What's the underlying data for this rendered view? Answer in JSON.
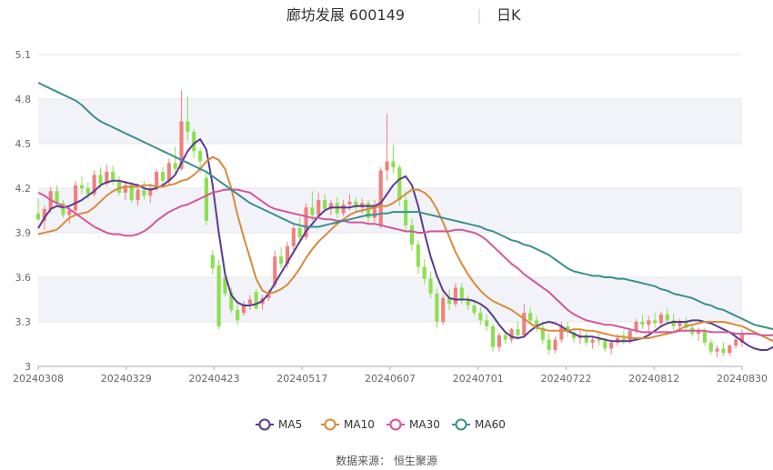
{
  "title": {
    "name": "廊坊发展 600149",
    "period": "日K"
  },
  "source_text": "数据来源： 恒生聚源",
  "colors": {
    "up": "#f07f7f",
    "down": "#8ae04e",
    "band": "#f2f3f8"
  },
  "chart_data": {
    "type": "candlestick",
    "title": "廊坊发展 600149",
    "period": "日K",
    "ylim": [
      3.0,
      5.1
    ],
    "yticks": [
      3,
      3.3,
      3.6,
      3.9,
      4.2,
      4.5,
      4.8,
      5.1
    ],
    "xtick_labels": [
      "20240308",
      "20240329",
      "20240423",
      "20240517",
      "20240607",
      "20240701",
      "20240722",
      "20240812",
      "20240830"
    ],
    "x_axis_order": "dates in ascending order; tick labels placed at every 15th session",
    "legend_placement": "bottom",
    "grid": "horizontal bands",
    "candles_ohlc": [
      [
        4.03,
        4.13,
        3.98,
        3.99
      ],
      [
        3.98,
        4.08,
        3.92,
        4.06
      ],
      [
        4.06,
        4.21,
        4.03,
        4.18
      ],
      [
        4.18,
        4.22,
        4.08,
        4.1
      ],
      [
        4.1,
        4.12,
        4.0,
        4.02
      ],
      [
        4.02,
        4.08,
        3.96,
        4.05
      ],
      [
        4.05,
        4.25,
        4.03,
        4.22
      ],
      [
        4.22,
        4.28,
        4.16,
        4.2
      ],
      [
        4.2,
        4.24,
        4.13,
        4.16
      ],
      [
        4.16,
        4.32,
        4.14,
        4.29
      ],
      [
        4.29,
        4.34,
        4.2,
        4.23
      ],
      [
        4.23,
        4.36,
        4.21,
        4.31
      ],
      [
        4.31,
        4.35,
        4.22,
        4.25
      ],
      [
        4.25,
        4.28,
        4.15,
        4.17
      ],
      [
        4.17,
        4.24,
        4.12,
        4.22
      ],
      [
        4.22,
        4.24,
        4.1,
        4.12
      ],
      [
        4.12,
        4.23,
        4.08,
        4.19
      ],
      [
        4.19,
        4.25,
        4.12,
        4.15
      ],
      [
        4.15,
        4.23,
        4.1,
        4.2
      ],
      [
        4.2,
        4.33,
        4.18,
        4.31
      ],
      [
        4.31,
        4.34,
        4.22,
        4.25
      ],
      [
        4.25,
        4.4,
        4.22,
        4.37
      ],
      [
        4.37,
        4.48,
        4.3,
        4.33
      ],
      [
        4.33,
        4.86,
        4.32,
        4.65
      ],
      [
        4.65,
        4.82,
        4.52,
        4.58
      ],
      [
        4.58,
        4.6,
        4.4,
        4.45
      ],
      [
        4.45,
        4.47,
        4.3,
        4.38
      ],
      [
        4.27,
        4.3,
        3.95,
        3.98
      ],
      [
        3.75,
        3.78,
        3.62,
        3.66
      ],
      [
        3.68,
        3.72,
        3.25,
        3.27
      ],
      [
        3.6,
        3.65,
        3.47,
        3.49
      ],
      [
        3.5,
        3.53,
        3.36,
        3.38
      ],
      [
        3.38,
        3.42,
        3.28,
        3.31
      ],
      [
        3.36,
        3.44,
        3.34,
        3.42
      ],
      [
        3.42,
        3.48,
        3.38,
        3.45
      ],
      [
        3.5,
        3.52,
        3.38,
        3.39
      ],
      [
        3.42,
        3.48,
        3.38,
        3.46
      ],
      [
        3.46,
        3.52,
        3.44,
        3.5
      ],
      [
        3.55,
        3.78,
        3.53,
        3.74
      ],
      [
        3.74,
        3.8,
        3.66,
        3.69
      ],
      [
        3.69,
        3.84,
        3.66,
        3.81
      ],
      [
        3.81,
        3.95,
        3.76,
        3.93
      ],
      [
        3.93,
        4.0,
        3.84,
        3.87
      ],
      [
        3.87,
        4.1,
        3.85,
        4.07
      ],
      [
        4.07,
        4.18,
        3.98,
        4.02
      ],
      [
        4.02,
        4.17,
        4.0,
        4.12
      ],
      [
        4.12,
        4.16,
        4.04,
        4.06
      ],
      [
        4.06,
        4.12,
        4.02,
        4.1
      ],
      [
        4.1,
        4.14,
        4.0,
        4.03
      ],
      [
        4.03,
        4.12,
        4.01,
        4.09
      ],
      [
        4.09,
        4.16,
        4.05,
        4.11
      ],
      [
        4.11,
        4.14,
        4.04,
        4.07
      ],
      [
        4.07,
        4.13,
        4.03,
        4.1
      ],
      [
        4.1,
        4.12,
        3.97,
        4.0
      ],
      [
        4.0,
        4.12,
        3.97,
        4.08
      ],
      [
        3.95,
        4.34,
        3.93,
        4.32
      ],
      [
        4.32,
        4.7,
        4.25,
        4.38
      ],
      [
        4.38,
        4.49,
        4.3,
        4.34
      ],
      [
        4.34,
        4.36,
        4.08,
        4.12
      ],
      [
        4.12,
        4.18,
        3.9,
        3.95
      ],
      [
        3.95,
        4.0,
        3.78,
        3.82
      ],
      [
        3.82,
        3.85,
        3.62,
        3.67
      ],
      [
        3.67,
        3.72,
        3.55,
        3.59
      ],
      [
        3.59,
        3.64,
        3.46,
        3.49
      ],
      [
        3.49,
        3.52,
        3.26,
        3.3
      ],
      [
        3.3,
        3.48,
        3.28,
        3.46
      ],
      [
        3.46,
        3.52,
        3.38,
        3.42
      ],
      [
        3.42,
        3.56,
        3.4,
        3.53
      ],
      [
        3.53,
        3.56,
        3.42,
        3.45
      ],
      [
        3.45,
        3.48,
        3.38,
        3.41
      ],
      [
        3.41,
        3.45,
        3.34,
        3.36
      ],
      [
        3.36,
        3.4,
        3.28,
        3.31
      ],
      [
        3.31,
        3.35,
        3.24,
        3.27
      ],
      [
        3.27,
        3.29,
        3.1,
        3.13
      ],
      [
        3.13,
        3.23,
        3.1,
        3.21
      ],
      [
        3.21,
        3.24,
        3.15,
        3.18
      ],
      [
        3.18,
        3.26,
        3.16,
        3.25
      ],
      [
        3.25,
        3.3,
        3.18,
        3.21
      ],
      [
        3.21,
        3.42,
        3.19,
        3.36
      ],
      [
        3.36,
        3.4,
        3.28,
        3.31
      ],
      [
        3.31,
        3.34,
        3.23,
        3.26
      ],
      [
        3.26,
        3.3,
        3.15,
        3.18
      ],
      [
        3.18,
        3.22,
        3.08,
        3.11
      ],
      [
        3.11,
        3.2,
        3.09,
        3.18
      ],
      [
        3.18,
        3.3,
        3.16,
        3.27
      ],
      [
        3.27,
        3.3,
        3.2,
        3.23
      ],
      [
        3.23,
        3.26,
        3.16,
        3.19
      ],
      [
        3.19,
        3.24,
        3.15,
        3.21
      ],
      [
        3.21,
        3.23,
        3.14,
        3.16
      ],
      [
        3.16,
        3.2,
        3.12,
        3.18
      ],
      [
        3.18,
        3.22,
        3.14,
        3.17
      ],
      [
        3.17,
        3.19,
        3.1,
        3.12
      ],
      [
        3.12,
        3.18,
        3.08,
        3.16
      ],
      [
        3.16,
        3.22,
        3.14,
        3.19
      ],
      [
        3.19,
        3.24,
        3.15,
        3.17
      ],
      [
        3.17,
        3.26,
        3.15,
        3.24
      ],
      [
        3.24,
        3.32,
        3.22,
        3.3
      ],
      [
        3.3,
        3.35,
        3.25,
        3.28
      ],
      [
        3.28,
        3.34,
        3.22,
        3.31
      ],
      [
        3.31,
        3.36,
        3.26,
        3.29
      ],
      [
        3.29,
        3.37,
        3.27,
        3.35
      ],
      [
        3.35,
        3.39,
        3.29,
        3.31
      ],
      [
        3.31,
        3.35,
        3.24,
        3.27
      ],
      [
        3.27,
        3.32,
        3.23,
        3.3
      ],
      [
        3.3,
        3.33,
        3.24,
        3.26
      ],
      [
        3.26,
        3.29,
        3.2,
        3.22
      ],
      [
        3.22,
        3.26,
        3.17,
        3.24
      ],
      [
        3.24,
        3.26,
        3.14,
        3.16
      ],
      [
        3.16,
        3.18,
        3.08,
        3.1
      ],
      [
        3.1,
        3.14,
        3.06,
        3.12
      ],
      [
        3.12,
        3.16,
        3.07,
        3.09
      ],
      [
        3.09,
        3.15,
        3.07,
        3.14
      ],
      [
        3.14,
        3.2,
        3.12,
        3.18
      ],
      [
        3.16,
        3.25,
        3.13,
        3.22
      ]
    ],
    "series": [
      {
        "name": "MA5",
        "color": "#5a3b8f",
        "values": [
          3.93,
          4.0,
          4.06,
          4.08,
          4.07,
          4.08,
          4.1,
          4.12,
          4.15,
          4.18,
          4.22,
          4.24,
          4.25,
          4.25,
          4.24,
          4.23,
          4.22,
          4.2,
          4.19,
          4.2,
          4.22,
          4.25,
          4.29,
          4.37,
          4.45,
          4.5,
          4.53,
          4.46,
          4.22,
          3.9,
          3.62,
          3.48,
          3.43,
          3.41,
          3.41,
          3.42,
          3.44,
          3.49,
          3.56,
          3.63,
          3.7,
          3.77,
          3.84,
          3.91,
          3.96,
          4.01,
          4.05,
          4.07,
          4.07,
          4.07,
          4.07,
          4.08,
          4.08,
          4.08,
          4.08,
          4.1,
          4.16,
          4.22,
          4.26,
          4.28,
          4.22,
          4.08,
          3.9,
          3.74,
          3.61,
          3.51,
          3.46,
          3.45,
          3.45,
          3.45,
          3.44,
          3.42,
          3.39,
          3.34,
          3.28,
          3.23,
          3.2,
          3.19,
          3.2,
          3.24,
          3.27,
          3.29,
          3.3,
          3.29,
          3.27,
          3.24,
          3.22,
          3.2,
          3.2,
          3.2,
          3.19,
          3.18,
          3.17,
          3.17,
          3.17,
          3.17,
          3.18,
          3.19,
          3.21,
          3.24,
          3.27,
          3.29,
          3.3,
          3.3,
          3.3,
          3.31,
          3.31,
          3.3,
          3.29,
          3.27,
          3.25,
          3.23,
          3.2,
          3.17,
          3.14,
          3.12,
          3.11,
          3.11,
          3.13,
          3.15
        ]
      },
      {
        "name": "MA10",
        "color": "#d98a3a",
        "values": [
          3.89,
          3.9,
          3.91,
          3.92,
          3.96,
          4.0,
          4.02,
          4.03,
          4.04,
          4.07,
          4.11,
          4.15,
          4.18,
          4.2,
          4.21,
          4.21,
          4.21,
          4.22,
          4.22,
          4.21,
          4.21,
          4.22,
          4.23,
          4.25,
          4.26,
          4.29,
          4.33,
          4.38,
          4.41,
          4.39,
          4.33,
          4.2,
          4.02,
          3.87,
          3.73,
          3.59,
          3.51,
          3.49,
          3.5,
          3.52,
          3.55,
          3.6,
          3.66,
          3.73,
          3.79,
          3.84,
          3.88,
          3.92,
          3.96,
          3.99,
          4.02,
          4.04,
          4.05,
          4.06,
          4.07,
          4.08,
          4.08,
          4.1,
          4.13,
          4.16,
          4.19,
          4.19,
          4.17,
          4.13,
          4.06,
          3.97,
          3.87,
          3.77,
          3.69,
          3.62,
          3.56,
          3.51,
          3.47,
          3.44,
          3.42,
          3.4,
          3.38,
          3.35,
          3.32,
          3.29,
          3.26,
          3.25,
          3.24,
          3.24,
          3.24,
          3.24,
          3.25,
          3.25,
          3.24,
          3.24,
          3.23,
          3.22,
          3.21,
          3.2,
          3.2,
          3.19,
          3.19,
          3.19,
          3.19,
          3.2,
          3.21,
          3.22,
          3.23,
          3.25,
          3.27,
          3.28,
          3.29,
          3.3,
          3.3,
          3.3,
          3.3,
          3.29,
          3.28,
          3.27,
          3.25,
          3.23,
          3.21,
          3.19,
          3.17,
          3.17
        ]
      },
      {
        "name": "MA30",
        "color": "#d4579a",
        "values": [
          4.17,
          4.15,
          4.12,
          4.1,
          4.08,
          4.06,
          4.03,
          4.0,
          3.97,
          3.94,
          3.92,
          3.9,
          3.89,
          3.89,
          3.88,
          3.88,
          3.89,
          3.91,
          3.94,
          3.98,
          4.01,
          4.04,
          4.06,
          4.08,
          4.09,
          4.11,
          4.13,
          4.15,
          4.17,
          4.18,
          4.19,
          4.19,
          4.19,
          4.18,
          4.17,
          4.14,
          4.11,
          4.08,
          4.06,
          4.05,
          4.04,
          4.03,
          4.02,
          4.01,
          4.0,
          4.0,
          3.99,
          3.99,
          3.98,
          3.98,
          3.97,
          3.97,
          3.97,
          3.96,
          3.96,
          3.95,
          3.94,
          3.93,
          3.92,
          3.91,
          3.91,
          3.9,
          3.9,
          3.91,
          3.91,
          3.91,
          3.91,
          3.92,
          3.92,
          3.91,
          3.9,
          3.88,
          3.85,
          3.81,
          3.77,
          3.73,
          3.69,
          3.66,
          3.62,
          3.59,
          3.56,
          3.53,
          3.5,
          3.46,
          3.42,
          3.38,
          3.35,
          3.33,
          3.31,
          3.3,
          3.29,
          3.28,
          3.28,
          3.27,
          3.26,
          3.25,
          3.24,
          3.23,
          3.23,
          3.23,
          3.23,
          3.23,
          3.23,
          3.24,
          3.24,
          3.24,
          3.24,
          3.24,
          3.23,
          3.23,
          3.23,
          3.23,
          3.22,
          3.22,
          3.22,
          3.22,
          3.21,
          3.21,
          3.21,
          3.21
        ]
      },
      {
        "name": "MA60",
        "color": "#3a8f8f",
        "values": [
          4.91,
          4.89,
          4.87,
          4.85,
          4.83,
          4.81,
          4.79,
          4.76,
          4.72,
          4.68,
          4.65,
          4.63,
          4.61,
          4.59,
          4.57,
          4.55,
          4.53,
          4.51,
          4.49,
          4.47,
          4.45,
          4.43,
          4.41,
          4.39,
          4.37,
          4.35,
          4.33,
          4.31,
          4.28,
          4.25,
          4.22,
          4.19,
          4.16,
          4.13,
          4.1,
          4.08,
          4.06,
          4.04,
          4.02,
          4.0,
          3.98,
          3.96,
          3.95,
          3.94,
          3.94,
          3.94,
          3.95,
          3.96,
          3.97,
          3.98,
          3.99,
          4.0,
          4.01,
          4.02,
          4.02,
          4.03,
          4.03,
          4.04,
          4.04,
          4.04,
          4.04,
          4.04,
          4.03,
          4.02,
          4.01,
          4.0,
          3.99,
          3.98,
          3.97,
          3.96,
          3.95,
          3.94,
          3.92,
          3.91,
          3.89,
          3.87,
          3.85,
          3.84,
          3.82,
          3.81,
          3.79,
          3.77,
          3.75,
          3.72,
          3.69,
          3.66,
          3.64,
          3.63,
          3.62,
          3.61,
          3.61,
          3.6,
          3.6,
          3.59,
          3.59,
          3.58,
          3.57,
          3.56,
          3.55,
          3.54,
          3.52,
          3.51,
          3.49,
          3.48,
          3.47,
          3.46,
          3.44,
          3.42,
          3.41,
          3.39,
          3.38,
          3.36,
          3.34,
          3.32,
          3.3,
          3.28,
          3.27,
          3.26,
          3.25,
          3.25
        ]
      }
    ]
  }
}
